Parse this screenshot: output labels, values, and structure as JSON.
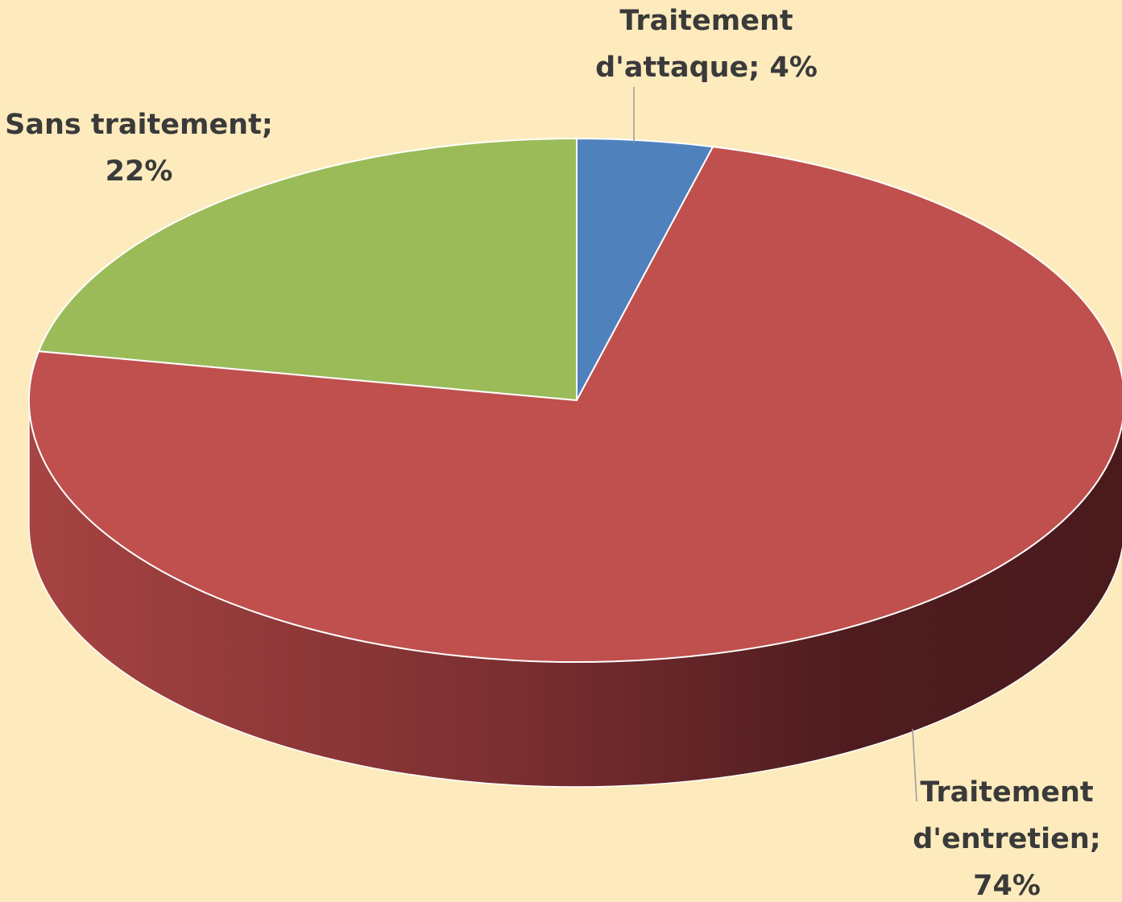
{
  "chart_data": {
    "type": "pie",
    "values": [
      4,
      74,
      22
    ],
    "value_labels": [
      "Traitement d'attaque; 4%",
      "Traitement d'entretien; 74%",
      "Sans traitement; 22%"
    ],
    "colors": [
      "#4f81bd",
      "#c0504d",
      "#9bbb59"
    ]
  }
}
